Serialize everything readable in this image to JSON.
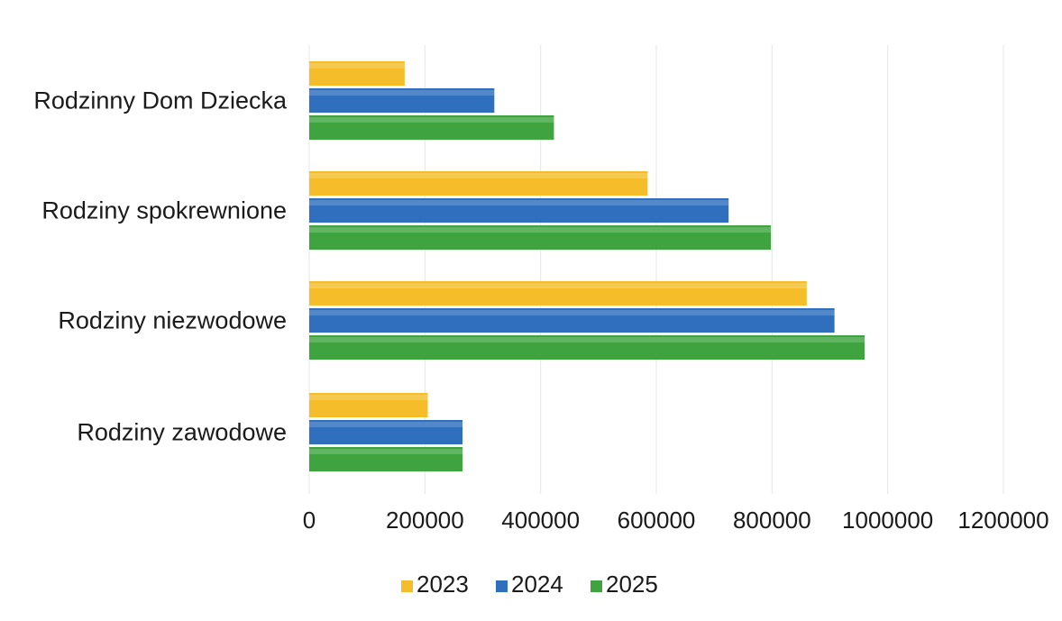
{
  "chart_data": {
    "type": "bar",
    "orientation": "horizontal",
    "title": "",
    "xlabel": "",
    "ylabel": "",
    "categories": [
      "Rodzinny Dom Dziecka",
      "Rodziny spokrewnione",
      "Rodziny niezwodowe",
      "Rodziny zawodowe"
    ],
    "series": [
      {
        "name": "2023",
        "color": "#f5bd2a",
        "values": [
          165000,
          585000,
          860000,
          205000
        ]
      },
      {
        "name": "2024",
        "color": "#2f6fbd",
        "values": [
          320000,
          725000,
          908000,
          265000
        ]
      },
      {
        "name": "2025",
        "color": "#3fa43f",
        "values": [
          423000,
          798000,
          960000,
          265000
        ]
      }
    ],
    "xlim": [
      0,
      1200000
    ],
    "x_ticks": [
      "0",
      "200000",
      "400000",
      "600000",
      "800000",
      "1000000",
      "1200000"
    ],
    "grid": true,
    "legend_position": "bottom"
  }
}
